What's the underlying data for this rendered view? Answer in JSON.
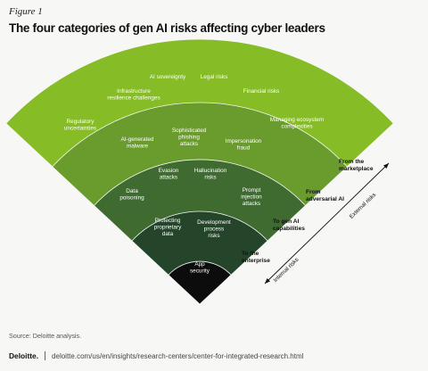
{
  "figure_label": "Figure 1",
  "title": "The four categories of gen AI risks affecting cyber leaders",
  "bands": [
    {
      "id": "marketplace",
      "color": "#86bc25",
      "edge_label": [
        "From the",
        "marketplace"
      ],
      "items": [
        {
          "lines": [
            "Regulatory",
            "uncertainties"
          ]
        },
        {
          "lines": [
            "Infrastructure",
            "resilience challenges"
          ]
        },
        {
          "lines": [
            "AI sovereignty"
          ]
        },
        {
          "lines": [
            "Legal risks"
          ]
        },
        {
          "lines": [
            "Financial risks"
          ]
        },
        {
          "lines": [
            "Managing ecosystem",
            "complexities"
          ]
        }
      ]
    },
    {
      "id": "adversarial",
      "color": "#6a9b2d",
      "edge_label": [
        "From",
        "adversarial AI"
      ],
      "items": [
        {
          "lines": [
            "AI-generated",
            "malware"
          ]
        },
        {
          "lines": [
            "Sophisticated",
            "phishing",
            "attacks"
          ]
        },
        {
          "lines": [
            "Impersonation",
            "fraud"
          ]
        }
      ]
    },
    {
      "id": "gen-ai",
      "color": "#3f6b31",
      "edge_label": [
        "To gen AI",
        "capabilities"
      ],
      "items": [
        {
          "lines": [
            "Data",
            "poisoning"
          ]
        },
        {
          "lines": [
            "Evasion",
            "attacks"
          ]
        },
        {
          "lines": [
            "Hallucination",
            "risks"
          ]
        },
        {
          "lines": [
            "Prompt",
            "injection",
            "attacks"
          ]
        }
      ]
    },
    {
      "id": "enterprise-outer",
      "color": "#24452a",
      "edge_label": [
        "To the",
        "enterprise"
      ],
      "items": [
        {
          "lines": [
            "Protecting",
            "proprietary",
            "data"
          ]
        },
        {
          "lines": [
            "Development",
            "process",
            "risks"
          ]
        }
      ]
    },
    {
      "id": "core",
      "color": "#0c0c0c",
      "edge_label": [],
      "items": [
        {
          "lines": [
            "App",
            "security"
          ]
        }
      ]
    }
  ],
  "axis": {
    "external_label": "External risks",
    "internal_label": "Internal risks"
  },
  "source": "Source: Deloitte analysis.",
  "footer": {
    "brand": "Deloitte.",
    "url": "deloitte.com/us/en/insights/research-centers/center-for-integrated-research.html"
  },
  "colors": {
    "text_light": "#ffffff",
    "axis": "#111111"
  }
}
